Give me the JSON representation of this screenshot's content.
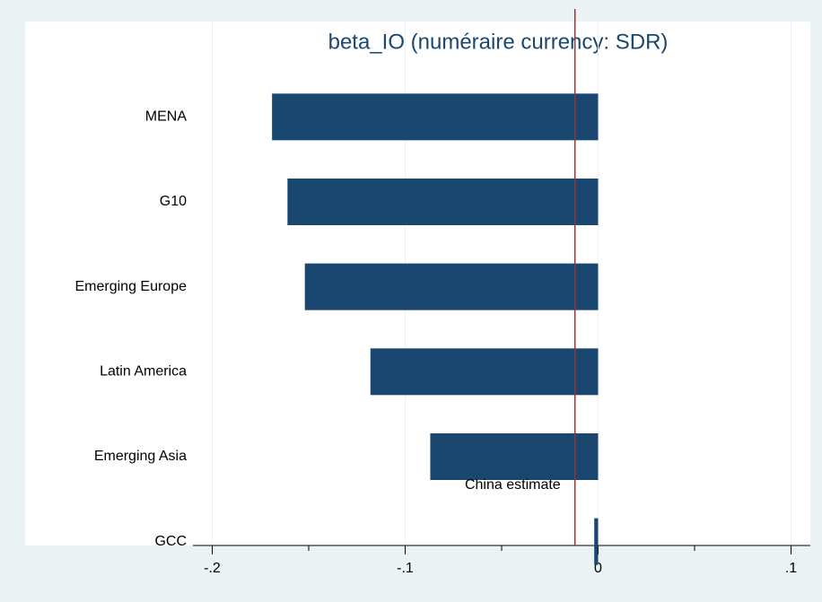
{
  "chart_data": {
    "type": "bar",
    "orientation": "horizontal",
    "title": "beta_IO (numéraire currency: SDR)",
    "categories": [
      "MENA",
      "G10",
      "Emerging Europe",
      "Latin America",
      "Emerging Asia",
      "GCC"
    ],
    "values": [
      -0.169,
      -0.161,
      -0.152,
      -0.118,
      -0.087,
      -0.002
    ],
    "color": "#1a476f",
    "xlim": [
      -0.21,
      0.11
    ],
    "xticks": [
      {
        "value": -0.2,
        "label": "-.2"
      },
      {
        "value": -0.1,
        "label": "-.1"
      },
      0,
      {
        "value": 0.1,
        "label": ".1"
      }
    ],
    "xminorticks": [
      -0.15,
      -0.05,
      0.05
    ],
    "grid": true,
    "reference_line": {
      "value": -0.012,
      "color": "#90353b",
      "label": "China estimate"
    }
  }
}
